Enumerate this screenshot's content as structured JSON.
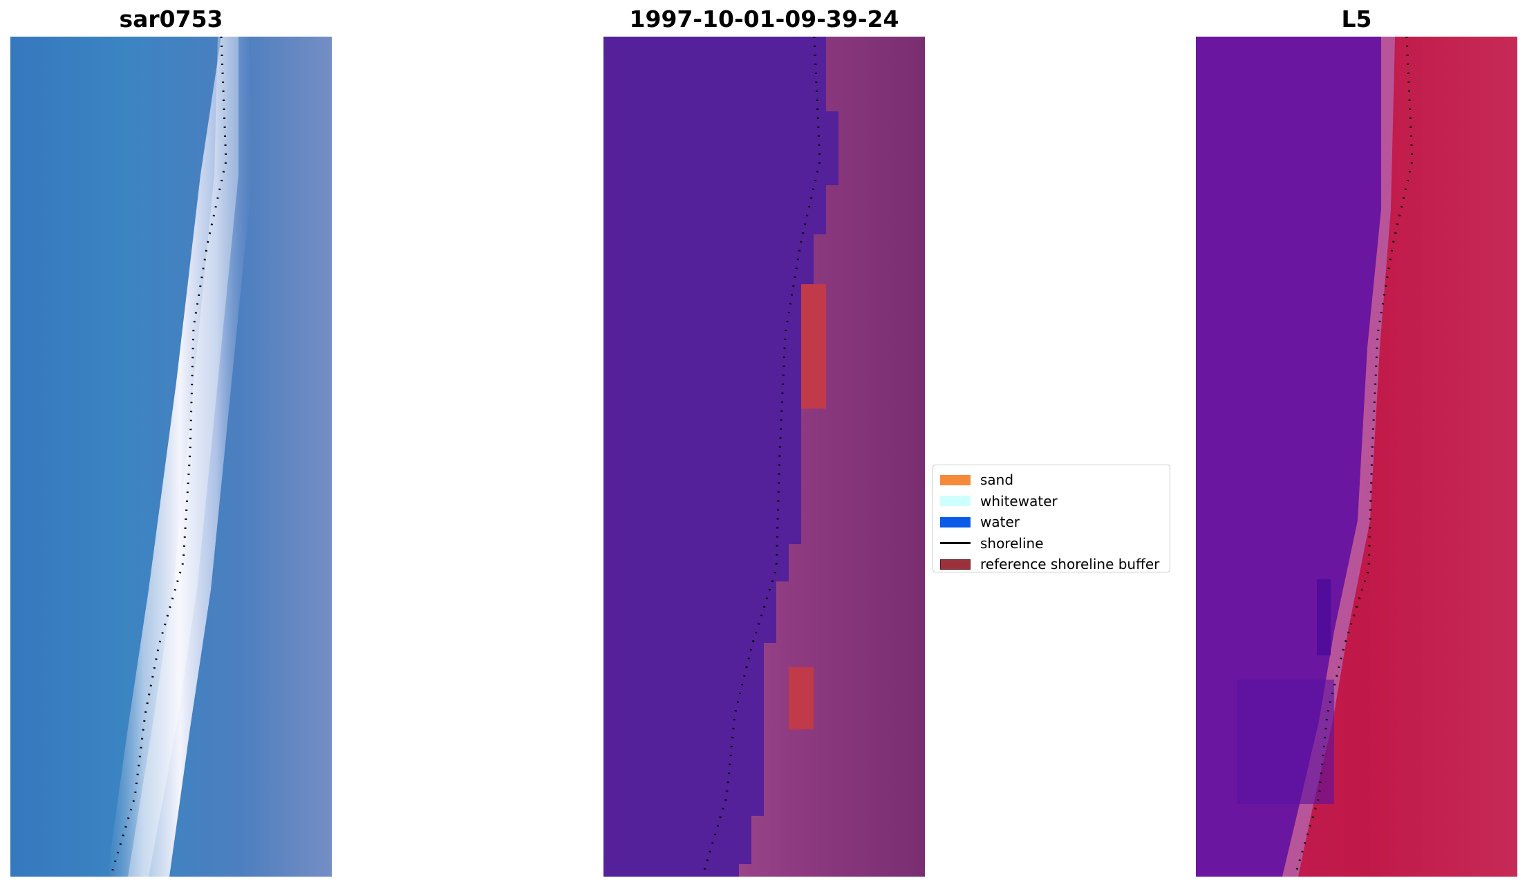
{
  "panels": [
    {
      "title": "sar0753"
    },
    {
      "title": "1997-10-01-09-39-24"
    },
    {
      "title": "L5"
    }
  ],
  "legend": {
    "placement": "center-right",
    "items": [
      {
        "label": "sand",
        "color": "#f58a3a",
        "kind": "patch"
      },
      {
        "label": "whitewater",
        "color": "#ccfffd",
        "kind": "patch"
      },
      {
        "label": "water",
        "color": "#0a5ce8",
        "kind": "patch"
      },
      {
        "label": "shoreline",
        "color": "#000000",
        "kind": "line"
      },
      {
        "label": "reference shoreline buffer",
        "color": "#9b313a",
        "kind": "patch"
      }
    ]
  },
  "colors": {
    "rgb_water": "#3a7fc0",
    "rgb_whitewater": "#eef0fb",
    "class_water": "#54219a",
    "class_sand": "#a85a98",
    "class_buffer": "#c03a4a",
    "mndwi_water": "#6a16a0",
    "mndwi_land": "#c61a4c"
  }
}
